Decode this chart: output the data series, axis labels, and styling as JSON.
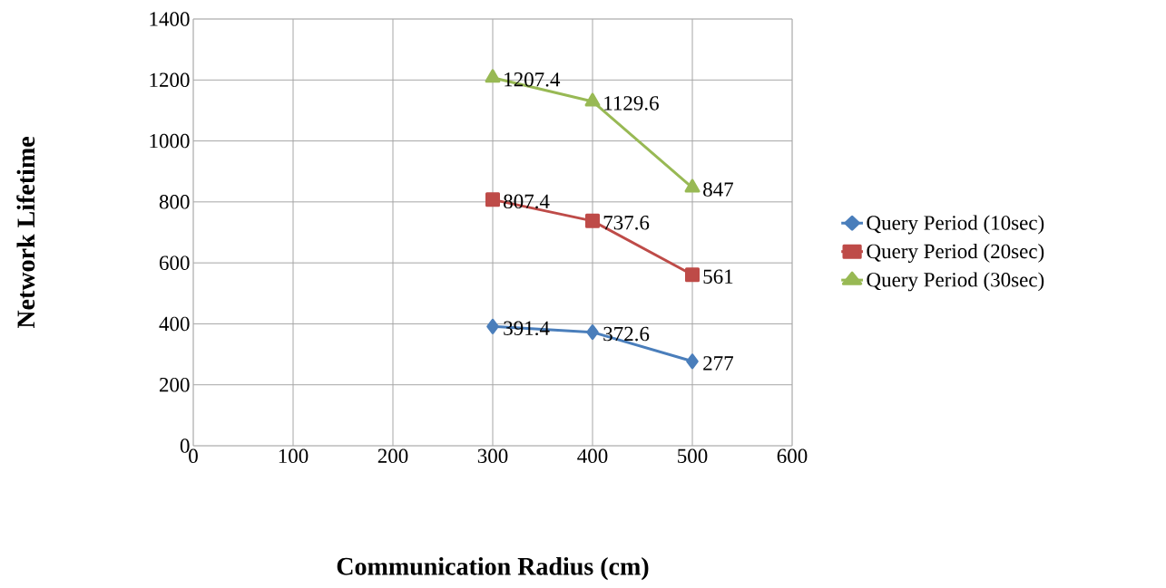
{
  "chart_data": {
    "type": "line",
    "xlabel": "Communication Radius (cm)",
    "ylabel": "Network Lifetime",
    "x": [
      300,
      400,
      500
    ],
    "series": [
      {
        "name": "Query Period (10sec)",
        "color": "#4a7ebb",
        "marker": "diamond",
        "values": [
          391.4,
          372.6,
          277
        ]
      },
      {
        "name": "Query Period (20sec)",
        "color": "#be4b48",
        "marker": "square",
        "values": [
          807.4,
          737.6,
          561
        ]
      },
      {
        "name": "Query Period (30sec)",
        "color": "#98b954",
        "marker": "triangle",
        "values": [
          1207.4,
          1129.6,
          847
        ]
      }
    ],
    "xlim": [
      0,
      600
    ],
    "xticks": [
      0,
      100,
      200,
      300,
      400,
      500,
      600
    ],
    "ylim": [
      0,
      1400
    ],
    "yticks": [
      0,
      200,
      400,
      600,
      800,
      1000,
      1200,
      1400
    ],
    "grid": true,
    "legend": "right",
    "data_labels": true,
    "line_style": "solid"
  }
}
